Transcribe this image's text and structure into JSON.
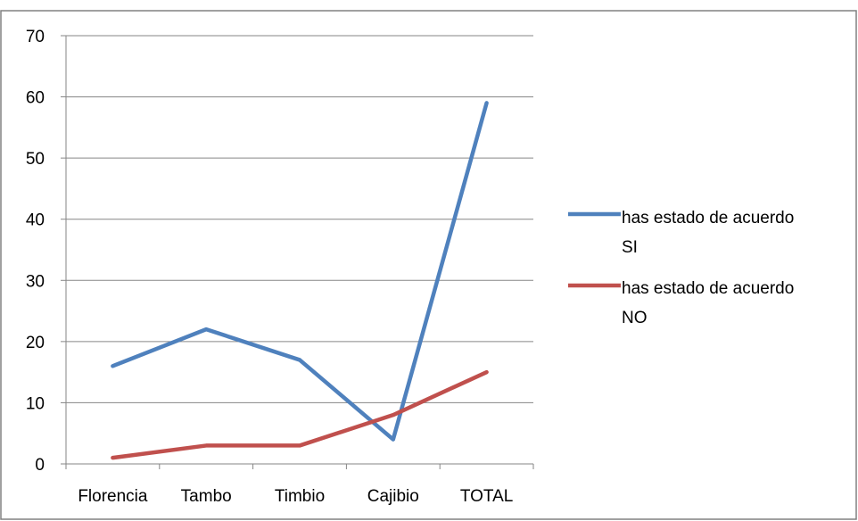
{
  "chart_data": {
    "type": "line",
    "categories": [
      "Florencia",
      "Tambo",
      "Timbio",
      "Cajibio",
      "TOTAL"
    ],
    "series": [
      {
        "name": "has estado de acuerdo SI",
        "name_lines": [
          "has estado de acuerdo",
          "SI"
        ],
        "values": [
          16,
          22,
          17,
          4,
          59
        ],
        "color": "#4f81bd"
      },
      {
        "name": "has estado de acuerdo NO",
        "name_lines": [
          "has estado de acuerdo",
          "NO"
        ],
        "values": [
          1,
          3,
          3,
          8,
          15
        ],
        "color": "#c0504d"
      }
    ],
    "yticks": [
      0,
      10,
      20,
      30,
      40,
      50,
      60,
      70
    ],
    "ylim": [
      0,
      70
    ],
    "grid": true,
    "legend_position": "right",
    "title": "",
    "xlabel": "",
    "ylabel": ""
  }
}
